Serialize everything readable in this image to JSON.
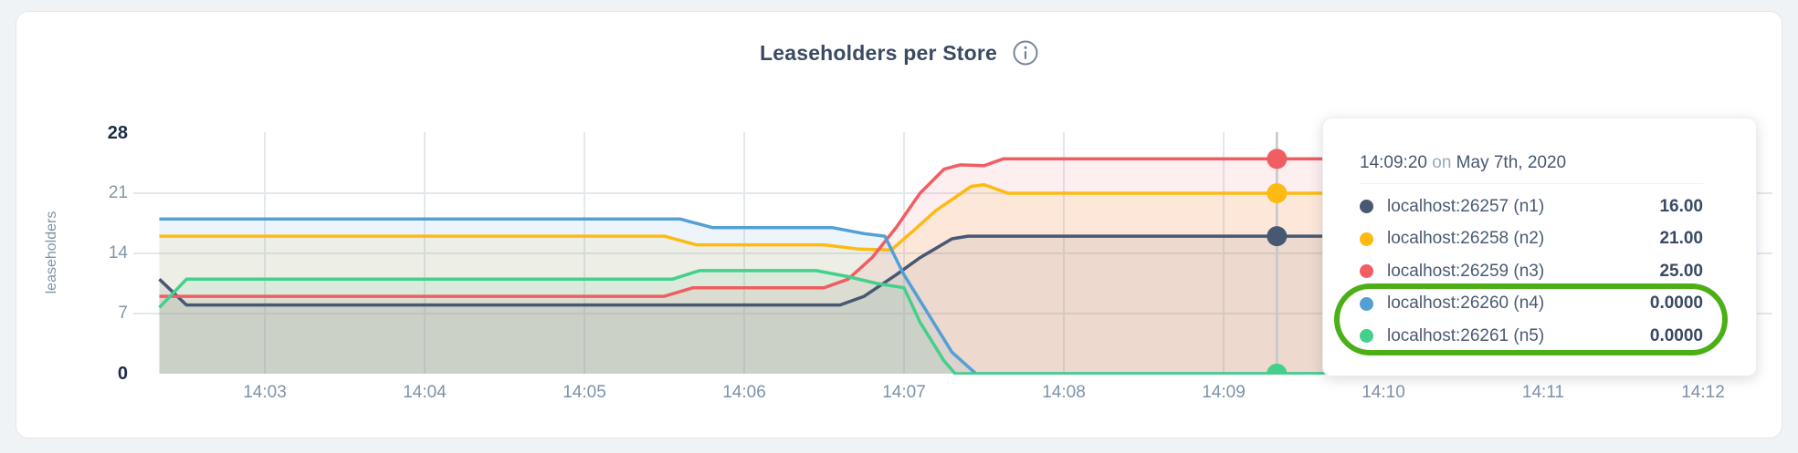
{
  "header": {
    "title": "Leaseholders per Store",
    "info_icon_glyph": "i"
  },
  "colors": {
    "page_bg": "#f0f3f6",
    "card_bg": "#ffffff",
    "grid": "#e2e8ee",
    "hover_line": "#c4c8cc",
    "axis_text": "#8496aa",
    "axis_text_bold": "#1d2b4a",
    "title_text": "#3b4a63",
    "icon": "#76849e",
    "annotation_green": "#4caf16"
  },
  "tooltip": {
    "time": "14:09:20",
    "on_word": "on",
    "date": "May 7th, 2020"
  },
  "annotation": {
    "shape": "stadium",
    "wraps_rows": [
      "localhost:26260 (n4)",
      "localhost:26261 (n5)"
    ]
  },
  "chart_data": {
    "type": "area",
    "title": "Leaseholders per Store",
    "xlabel": "",
    "ylabel": "leaseholders",
    "ylim": [
      0,
      28
    ],
    "y_ticks": [
      0,
      7,
      14,
      21,
      28
    ],
    "y_ticks_bold": [
      0,
      28
    ],
    "x_ticks": [
      "14:03",
      "14:04",
      "14:05",
      "14:06",
      "14:07",
      "14:08",
      "14:09",
      "14:10",
      "14:11",
      "14:12"
    ],
    "x_tick_start_minute": 3,
    "grid": "on",
    "legend_position": "tooltip-overlay",
    "fill_opacity": 0.1,
    "hover": {
      "time": "14:09:20",
      "date": "May 7th, 2020",
      "minute": 9.3333,
      "values": [
        "16.00",
        "21.00",
        "25.00",
        "0.0000",
        "0.0000"
      ]
    },
    "series": [
      {
        "name": "localhost:26257 (n1)",
        "color": "#475872",
        "hover_value": "16.00",
        "points": [
          [
            2.34,
            11
          ],
          [
            2.51,
            8
          ],
          [
            6.6,
            8
          ],
          [
            6.75,
            9
          ],
          [
            6.95,
            11.5
          ],
          [
            7.1,
            13.5
          ],
          [
            7.3,
            15.7
          ],
          [
            7.4,
            16
          ],
          [
            9.67,
            16
          ]
        ]
      },
      {
        "name": "localhost:26258 (n2)",
        "color": "#fdba12",
        "hover_value": "21.00",
        "points": [
          [
            2.34,
            16
          ],
          [
            5.5,
            16
          ],
          [
            5.7,
            15
          ],
          [
            6.5,
            15
          ],
          [
            6.72,
            14.5
          ],
          [
            6.92,
            14.4
          ],
          [
            7.05,
            16.5
          ],
          [
            7.2,
            19
          ],
          [
            7.42,
            21.8
          ],
          [
            7.5,
            22
          ],
          [
            7.65,
            21
          ],
          [
            9.67,
            21
          ]
        ]
      },
      {
        "name": "localhost:26259 (n3)",
        "color": "#f05d62",
        "hover_value": "25.00",
        "points": [
          [
            2.34,
            9
          ],
          [
            5.5,
            9
          ],
          [
            5.68,
            10
          ],
          [
            6.5,
            10
          ],
          [
            6.65,
            11
          ],
          [
            6.8,
            13.5
          ],
          [
            6.95,
            17
          ],
          [
            7.1,
            21
          ],
          [
            7.25,
            23.8
          ],
          [
            7.35,
            24.3
          ],
          [
            7.5,
            24.2
          ],
          [
            7.62,
            25
          ],
          [
            9.67,
            25
          ]
        ]
      },
      {
        "name": "localhost:26260 (n4)",
        "color": "#539fd6",
        "hover_value": "0.0000",
        "points": [
          [
            2.34,
            18
          ],
          [
            5.6,
            18
          ],
          [
            5.8,
            17
          ],
          [
            6.55,
            17
          ],
          [
            6.75,
            16.3
          ],
          [
            6.88,
            16
          ],
          [
            7.0,
            11.5
          ],
          [
            7.15,
            7
          ],
          [
            7.3,
            2.5
          ],
          [
            7.45,
            0
          ],
          [
            9.67,
            0
          ]
        ]
      },
      {
        "name": "localhost:26261 (n5)",
        "color": "#43d08a",
        "hover_value": "0.0000",
        "points": [
          [
            2.34,
            7.7
          ],
          [
            2.51,
            11
          ],
          [
            5.55,
            11
          ],
          [
            5.72,
            12
          ],
          [
            6.45,
            12
          ],
          [
            6.65,
            11.3
          ],
          [
            6.83,
            10.5
          ],
          [
            7.0,
            10
          ],
          [
            7.1,
            6
          ],
          [
            7.25,
            1.5
          ],
          [
            7.32,
            0
          ],
          [
            9.67,
            0
          ]
        ]
      }
    ]
  }
}
